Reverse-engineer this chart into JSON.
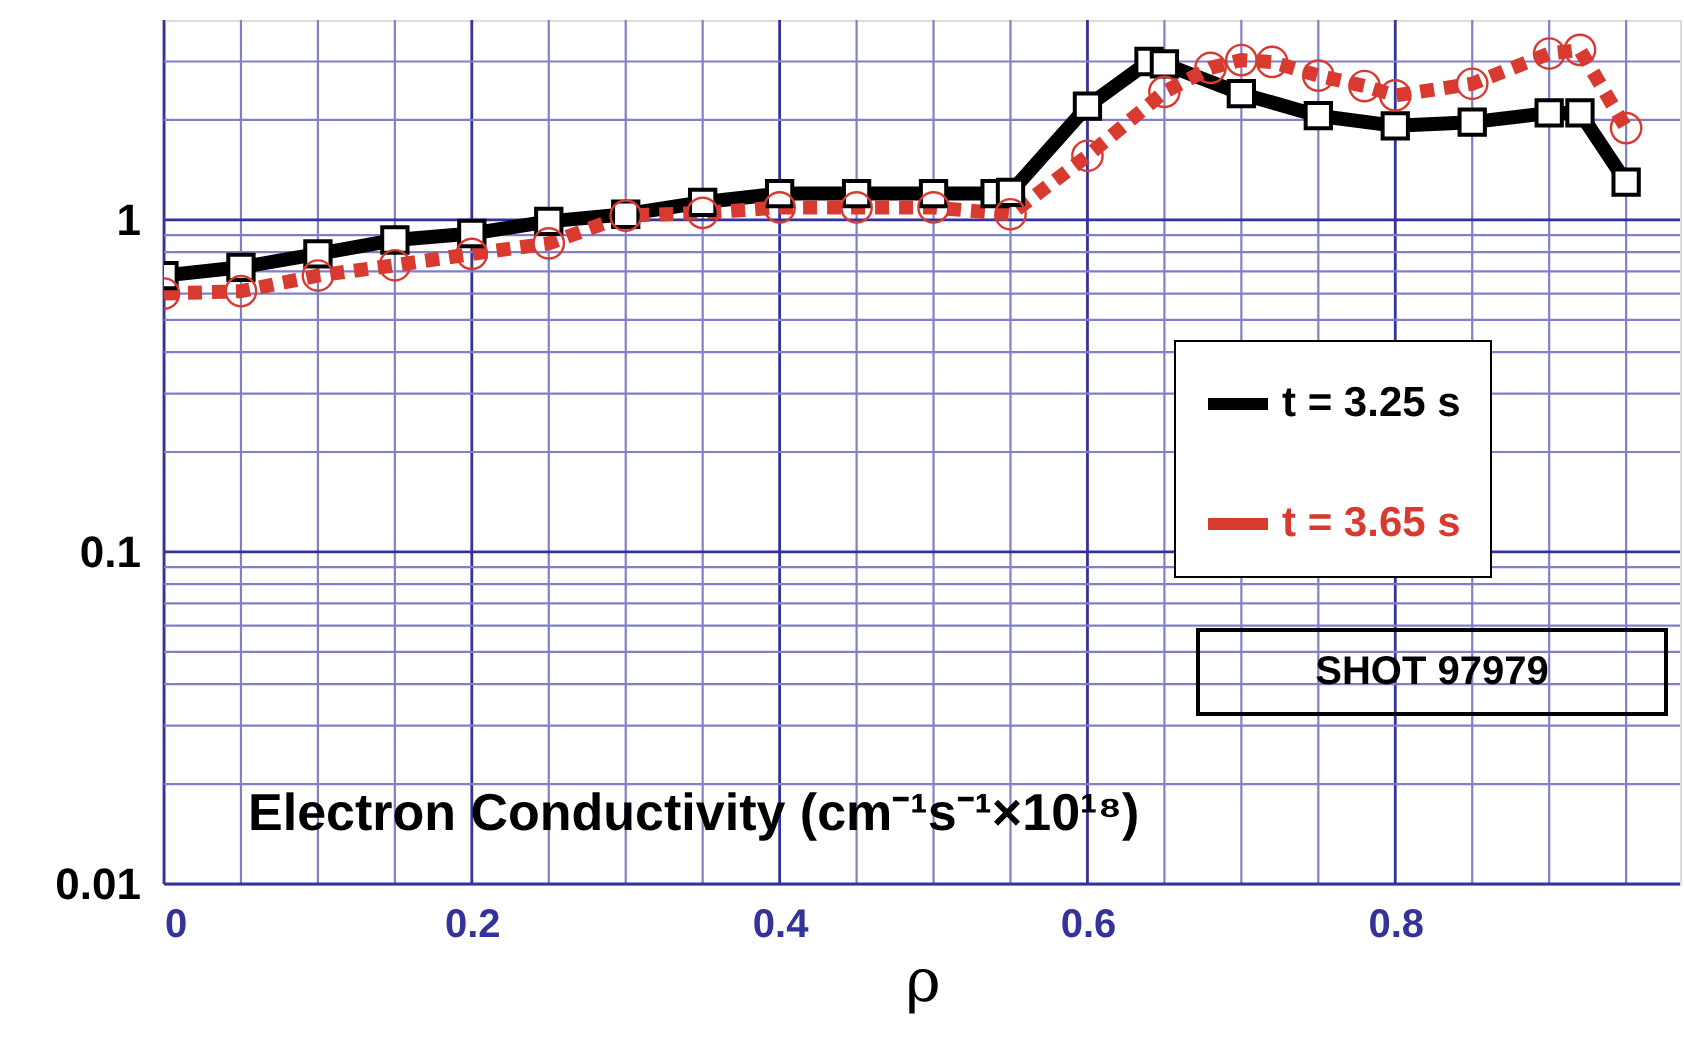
{
  "chart_data": {
    "type": "line",
    "title": "Electron Conductivity (cm⁻¹s⁻¹×10¹⁸)",
    "xlabel": "ρ",
    "xlim": [
      0,
      0.985
    ],
    "xticks": [
      0,
      {
        "value": 0.05,
        "label": null
      },
      {
        "value": 0.1,
        "label": null
      },
      {
        "value": 0.15,
        "label": null
      },
      0.2,
      {
        "value": 0.25,
        "label": null
      },
      {
        "value": 0.3,
        "label": null
      },
      {
        "value": 0.35,
        "label": null
      },
      0.4,
      {
        "value": 0.45,
        "label": null
      },
      {
        "value": 0.5,
        "label": null
      },
      {
        "value": 0.55,
        "label": null
      },
      0.6,
      {
        "value": 0.65,
        "label": null
      },
      {
        "value": 0.7,
        "label": null
      },
      {
        "value": 0.75,
        "label": null
      },
      0.8,
      {
        "value": 0.85,
        "label": null
      },
      {
        "value": 0.9,
        "label": null
      },
      {
        "value": 0.95,
        "label": null
      }
    ],
    "ylim": [
      0.01,
      4
    ],
    "log": true,
    "yticks": [
      0.01,
      {
        "value": 0.02,
        "label": null
      },
      {
        "value": 0.03,
        "label": null
      },
      {
        "value": 0.04,
        "label": null
      },
      {
        "value": 0.05,
        "label": null
      },
      {
        "value": 0.06,
        "label": null
      },
      {
        "value": 0.07,
        "label": null
      },
      {
        "value": 0.08,
        "label": null
      },
      {
        "value": 0.09,
        "label": null
      },
      0.1,
      {
        "value": 0.2,
        "label": null
      },
      {
        "value": 0.3,
        "label": null
      },
      {
        "value": 0.4,
        "label": null
      },
      {
        "value": 0.5,
        "label": null
      },
      {
        "value": 0.6,
        "label": null
      },
      {
        "value": 0.7,
        "label": null
      },
      {
        "value": 0.8,
        "label": null
      },
      {
        "value": 0.9,
        "label": null
      },
      1,
      {
        "value": 2,
        "label": null
      },
      {
        "value": 3,
        "label": null
      }
    ],
    "grid": true,
    "legend": "right",
    "annotations": [
      "SHOT    97979"
    ],
    "series": [
      {
        "name": "t = 3.25 s",
        "color": "#000000",
        "marker": "square",
        "line_style": "solid",
        "x": [
          0,
          0.05,
          0.1,
          0.15,
          0.2,
          0.25,
          0.3,
          0.35,
          0.4,
          0.45,
          0.5,
          0.54,
          0.55,
          0.6,
          0.64,
          0.65,
          0.7,
          0.75,
          0.8,
          0.85,
          0.9,
          0.92,
          0.95
        ],
        "values": [
          0.68,
          0.72,
          0.79,
          0.87,
          0.91,
          0.99,
          1.04,
          1.13,
          1.2,
          1.2,
          1.2,
          1.2,
          1.21,
          2.2,
          3.0,
          2.95,
          2.4,
          2.06,
          1.92,
          1.97,
          2.1,
          2.1,
          1.3
        ]
      },
      {
        "name": "t = 3.65 s",
        "color": "#d93a30",
        "marker": "circle",
        "line_style": "dotted",
        "x": [
          0,
          0.05,
          0.1,
          0.15,
          0.2,
          0.25,
          0.3,
          0.35,
          0.4,
          0.45,
          0.5,
          0.55,
          0.6,
          0.65,
          0.68,
          0.7,
          0.72,
          0.75,
          0.78,
          0.8,
          0.85,
          0.9,
          0.92,
          0.95
        ],
        "values": [
          0.6,
          0.61,
          0.68,
          0.73,
          0.79,
          0.85,
          1.03,
          1.05,
          1.09,
          1.09,
          1.09,
          1.04,
          1.56,
          2.43,
          2.87,
          3.03,
          2.99,
          2.72,
          2.53,
          2.37,
          2.57,
          3.17,
          3.25,
          1.89
        ]
      }
    ]
  }
}
